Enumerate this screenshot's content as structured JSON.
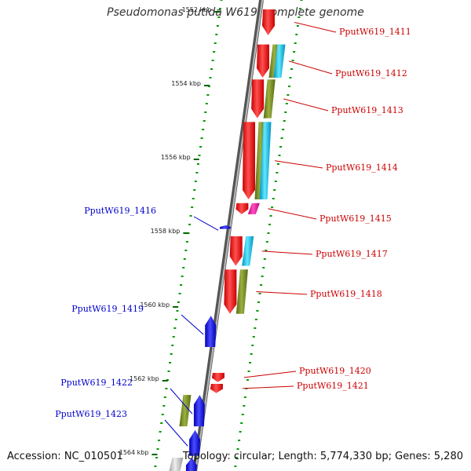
{
  "title": "Pseudomonas putida W619, complete genome",
  "footer": {
    "accession": "Accession: NC_010501",
    "topology": "Topology: circular; Length: 5,774,330 bp; Genes: 5,280"
  },
  "colors": {
    "forward_gene": "#ff0000",
    "reverse_gene": "#0000ff",
    "label_forward": "#cc0000",
    "label_reverse": "#0000cc",
    "tick_major": "#006400",
    "tick_minor": "#009900",
    "backbone": "#888888"
  },
  "map": {
    "start_kbp": 1552,
    "end_kbp": 1564
  },
  "ruler": [
    {
      "kbp": 1552,
      "label": "1552 kbp"
    },
    {
      "kbp": 1554,
      "label": "1554 kbp"
    },
    {
      "kbp": 1556,
      "label": "1556 kbp"
    },
    {
      "kbp": 1558,
      "label": "1558 kbp"
    },
    {
      "kbp": 1560,
      "label": "1560 kbp"
    },
    {
      "kbp": 1562,
      "label": "1562 kbp"
    },
    {
      "kbp": 1564,
      "label": "1564 kbp"
    }
  ],
  "genes": [
    {
      "locus": "PputW619_1411",
      "strand": "+",
      "start_kbp": 1552.0,
      "end_kbp": 1552.7,
      "features": [
        "cds"
      ]
    },
    {
      "locus": "PputW619_1412",
      "strand": "+",
      "start_kbp": 1552.95,
      "end_kbp": 1553.85,
      "features": [
        "cds",
        "olive",
        "cyan"
      ]
    },
    {
      "locus": "PputW619_1413",
      "strand": "+",
      "start_kbp": 1553.9,
      "end_kbp": 1554.95,
      "features": [
        "cds",
        "olive"
      ]
    },
    {
      "locus": "PputW619_1414",
      "strand": "+",
      "start_kbp": 1555.05,
      "end_kbp": 1557.15,
      "features": [
        "cds",
        "olive",
        "cyan"
      ]
    },
    {
      "locus": "PputW619_1415",
      "strand": "+",
      "start_kbp": 1557.25,
      "end_kbp": 1557.55,
      "features": [
        "cds",
        "magenta"
      ]
    },
    {
      "locus": "PputW619_1416",
      "strand": "-",
      "start_kbp": 1557.85,
      "end_kbp": 1557.95,
      "features": [
        "cds"
      ]
    },
    {
      "locus": "PputW619_1417",
      "strand": "+",
      "start_kbp": 1558.15,
      "end_kbp": 1558.95,
      "features": [
        "cds",
        "cyan"
      ]
    },
    {
      "locus": "PputW619_1418",
      "strand": "+",
      "start_kbp": 1559.05,
      "end_kbp": 1560.25,
      "features": [
        "cds",
        "olive"
      ]
    },
    {
      "locus": "PputW619_1419",
      "strand": "-",
      "start_kbp": 1560.3,
      "end_kbp": 1561.15,
      "features": [
        "cds"
      ]
    },
    {
      "locus": "PputW619_1420",
      "strand": "+",
      "start_kbp": 1561.85,
      "end_kbp": 1562.1,
      "features": [
        "cds"
      ]
    },
    {
      "locus": "PputW619_1421",
      "strand": "+",
      "start_kbp": 1562.15,
      "end_kbp": 1562.4,
      "features": [
        "cds"
      ]
    },
    {
      "locus": "PputW619_1422",
      "strand": "-",
      "start_kbp": 1562.45,
      "end_kbp": 1563.3,
      "features": [
        "cds",
        "olive"
      ]
    },
    {
      "locus": "PputW619_1423",
      "strand": "-",
      "start_kbp": 1563.4,
      "end_kbp": 1564.1,
      "features": [
        "cds"
      ]
    },
    {
      "locus": "",
      "strand": "-",
      "start_kbp": 1564.15,
      "end_kbp": 1564.6,
      "features": [
        "cds",
        "gray"
      ]
    }
  ]
}
